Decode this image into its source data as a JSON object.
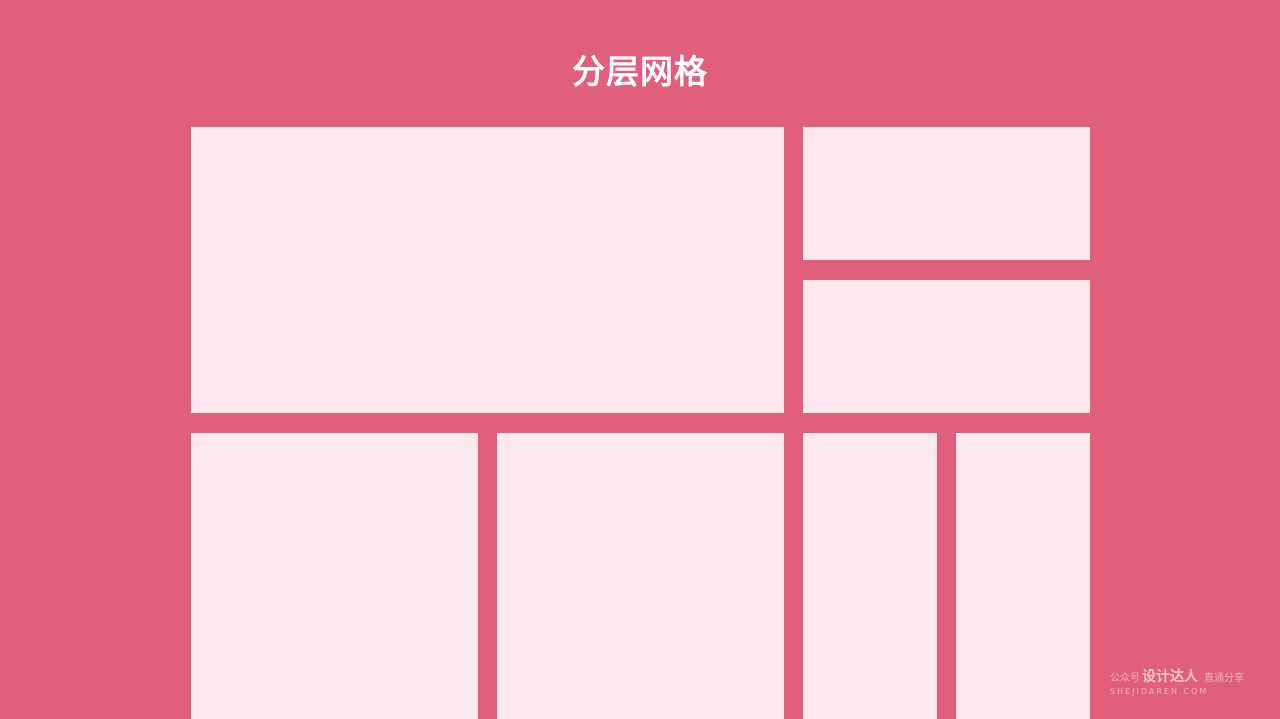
{
  "title": "分层网格",
  "colors": {
    "background": "#e05f7d",
    "tile": "#fce8ee",
    "title_text": "#ffffff"
  },
  "watermark": {
    "prefix": "公众号",
    "brand": "设计达人",
    "suffix": "直通分享",
    "url": "SHEJIDAREN.COM"
  }
}
